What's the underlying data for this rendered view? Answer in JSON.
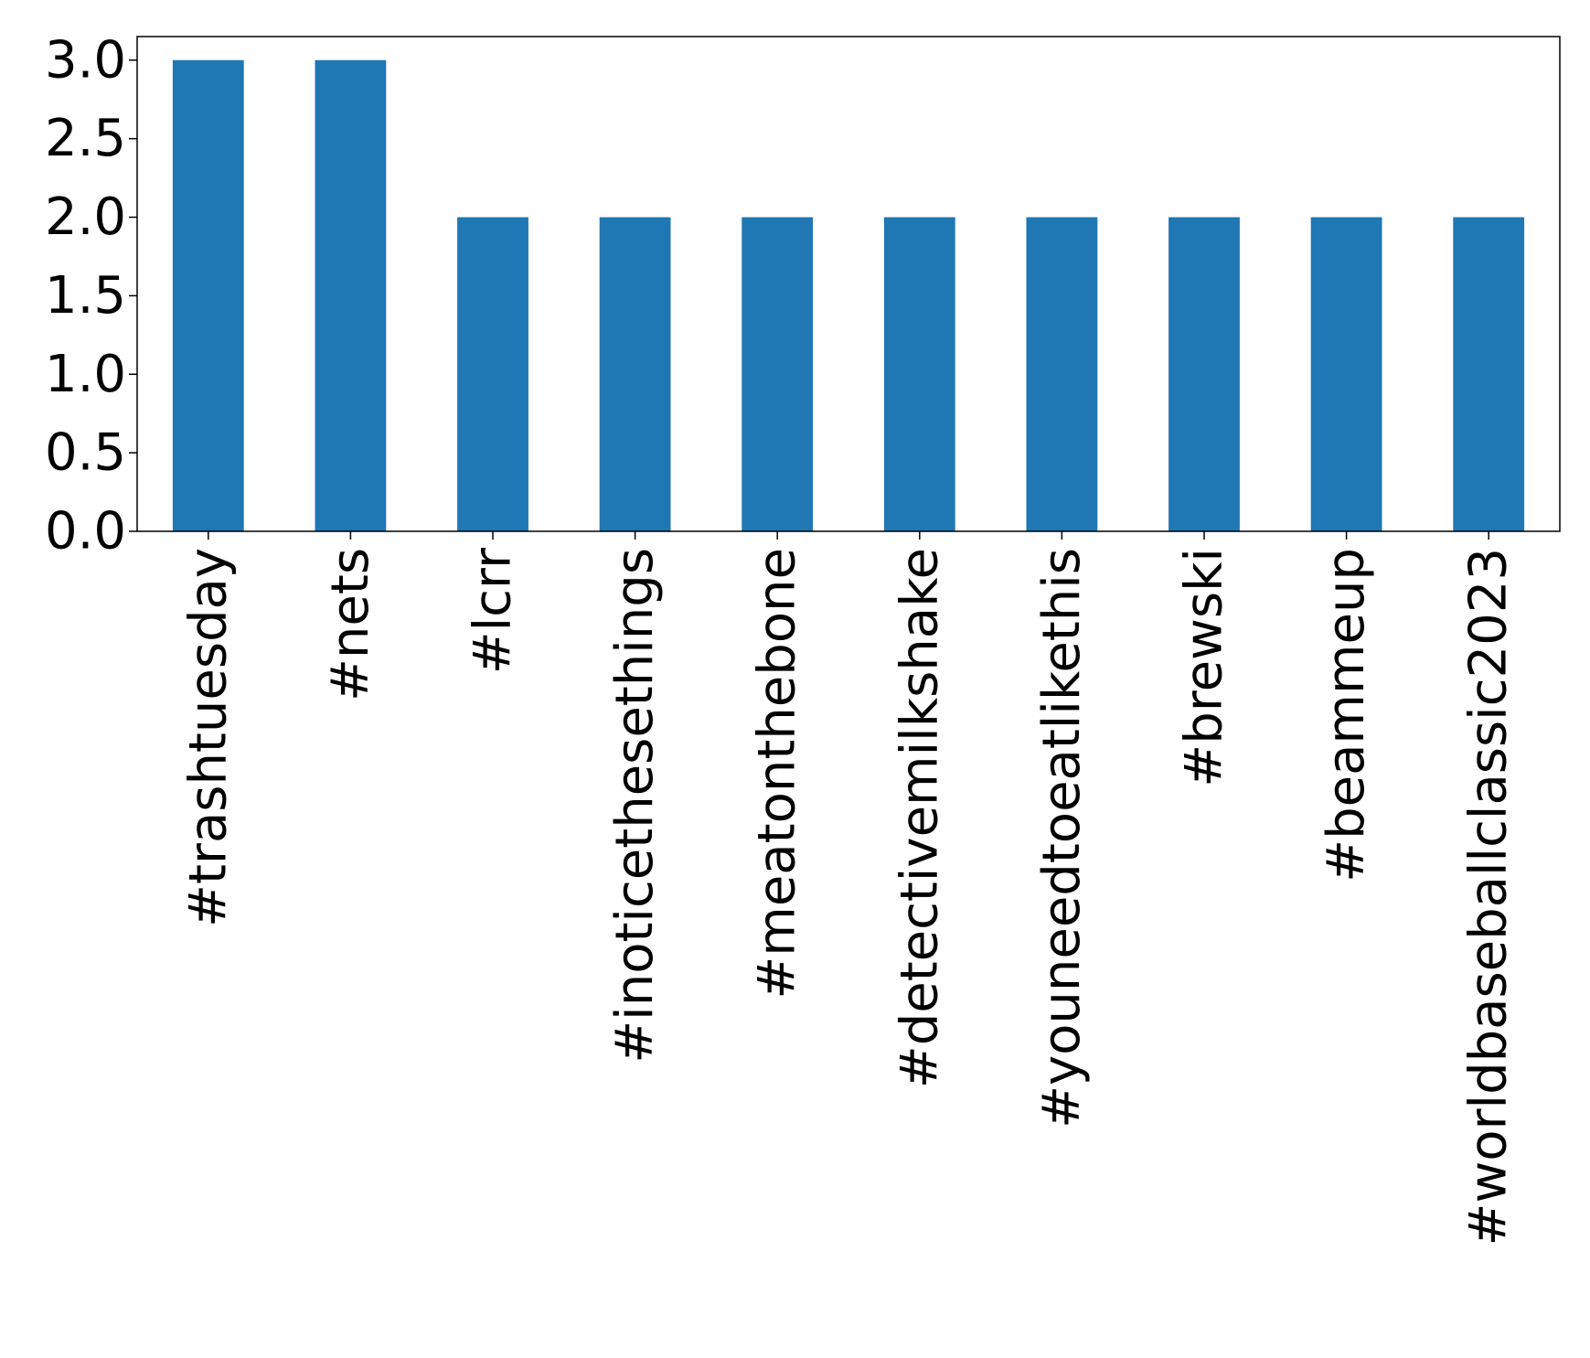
{
  "chart_data": {
    "type": "bar",
    "title": "",
    "xlabel": "",
    "ylabel": "",
    "categories": [
      "#trashtuesday",
      "#nets",
      "#lcrr",
      "#inoticethesethings",
      "#meatonthebone",
      "#detectivemilkshake",
      "#youneedtoeatlikethis",
      "#brewski",
      "#beammeup",
      "#worldbaseballclassic2023"
    ],
    "values": [
      3,
      3,
      2,
      2,
      2,
      2,
      2,
      2,
      2,
      2
    ],
    "ylim": [
      0,
      3.15
    ],
    "yticks": [
      0.0,
      0.5,
      1.0,
      1.5,
      2.0,
      2.5,
      3.0
    ],
    "ytick_labels": [
      "0.0",
      "0.5",
      "1.0",
      "1.5",
      "2.0",
      "2.5",
      "3.0"
    ],
    "grid": false,
    "legend": "none",
    "colors": {
      "bar": "#1f77b4",
      "axes": "#000000"
    }
  }
}
